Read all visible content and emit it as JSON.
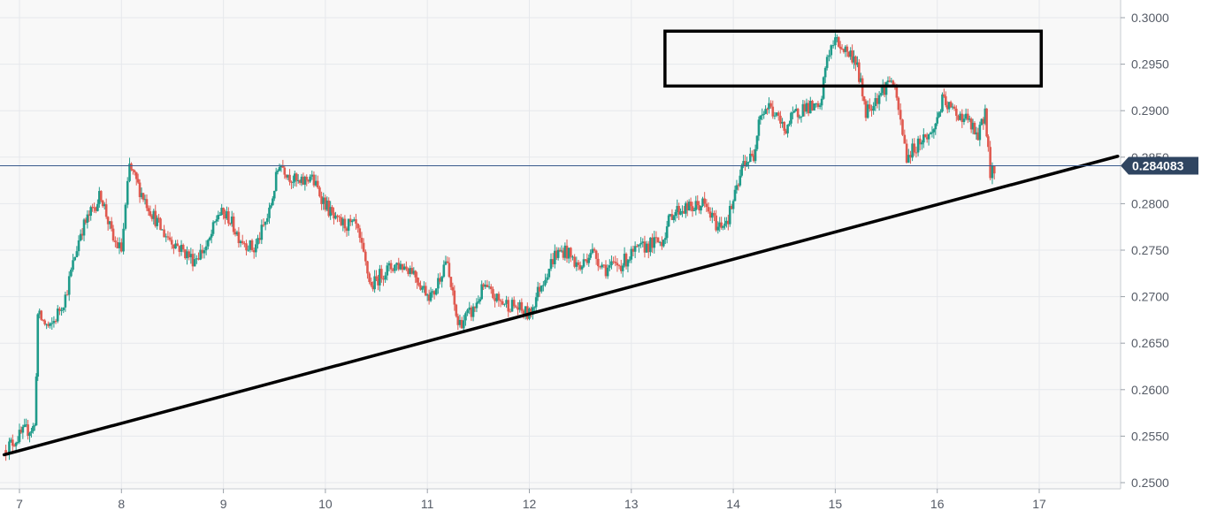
{
  "chart_data": {
    "type": "candlestick",
    "title": "",
    "xlabel": "",
    "ylabel": "",
    "x_ticks": [
      "7",
      "8",
      "9",
      "10",
      "11",
      "12",
      "13",
      "14",
      "15",
      "16",
      "17"
    ],
    "y_ticks": [
      "0.3000",
      "0.2950",
      "0.2900",
      "0.2850",
      "0.2800",
      "0.2750",
      "0.2700",
      "0.2650",
      "0.2600",
      "0.2550",
      "0.2500"
    ],
    "xlim": [
      6.85,
      17.8
    ],
    "ylim": [
      0.2497,
      0.3015
    ],
    "grid": true,
    "current_price": "0.284083",
    "current_price_value": 0.284083,
    "colors": {
      "up": "#1f9b8a",
      "down": "#e05a50",
      "price_line": "#3a5a8c",
      "badge_bg": "#2f4561",
      "grid": "#e6e8ec",
      "plot_bg": "#f8f8f8",
      "annotation": "#000000"
    },
    "series": [
      {
        "type": "candlestick",
        "points": [
          {
            "x": 6.85,
            "y": 0.2535
          },
          {
            "x": 6.95,
            "y": 0.2545
          },
          {
            "x": 7.05,
            "y": 0.2555
          },
          {
            "x": 7.15,
            "y": 0.256
          },
          {
            "x": 7.18,
            "y": 0.268
          },
          {
            "x": 7.3,
            "y": 0.2665
          },
          {
            "x": 7.45,
            "y": 0.27
          },
          {
            "x": 7.6,
            "y": 0.277
          },
          {
            "x": 7.7,
            "y": 0.279
          },
          {
            "x": 7.8,
            "y": 0.281
          },
          {
            "x": 7.92,
            "y": 0.276
          },
          {
            "x": 8.0,
            "y": 0.275
          },
          {
            "x": 8.08,
            "y": 0.284
          },
          {
            "x": 8.18,
            "y": 0.2815
          },
          {
            "x": 8.3,
            "y": 0.279
          },
          {
            "x": 8.4,
            "y": 0.277
          },
          {
            "x": 8.55,
            "y": 0.2755
          },
          {
            "x": 8.7,
            "y": 0.274
          },
          {
            "x": 8.85,
            "y": 0.2755
          },
          {
            "x": 8.95,
            "y": 0.279
          },
          {
            "x": 9.05,
            "y": 0.2785
          },
          {
            "x": 9.15,
            "y": 0.2765
          },
          {
            "x": 9.3,
            "y": 0.275
          },
          {
            "x": 9.45,
            "y": 0.279
          },
          {
            "x": 9.55,
            "y": 0.2845
          },
          {
            "x": 9.65,
            "y": 0.283
          },
          {
            "x": 9.75,
            "y": 0.282
          },
          {
            "x": 9.85,
            "y": 0.283
          },
          {
            "x": 10.0,
            "y": 0.28
          },
          {
            "x": 10.1,
            "y": 0.278
          },
          {
            "x": 10.3,
            "y": 0.2775
          },
          {
            "x": 10.45,
            "y": 0.271
          },
          {
            "x": 10.55,
            "y": 0.2725
          },
          {
            "x": 10.7,
            "y": 0.2735
          },
          {
            "x": 10.85,
            "y": 0.273
          },
          {
            "x": 10.95,
            "y": 0.271
          },
          {
            "x": 11.05,
            "y": 0.27
          },
          {
            "x": 11.18,
            "y": 0.274
          },
          {
            "x": 11.3,
            "y": 0.267
          },
          {
            "x": 11.45,
            "y": 0.2685
          },
          {
            "x": 11.55,
            "y": 0.271
          },
          {
            "x": 11.7,
            "y": 0.2695
          },
          {
            "x": 11.85,
            "y": 0.269
          },
          {
            "x": 12.0,
            "y": 0.268
          },
          {
            "x": 12.1,
            "y": 0.271
          },
          {
            "x": 12.25,
            "y": 0.2745
          },
          {
            "x": 12.35,
            "y": 0.275
          },
          {
            "x": 12.5,
            "y": 0.273
          },
          {
            "x": 12.6,
            "y": 0.275
          },
          {
            "x": 12.75,
            "y": 0.273
          },
          {
            "x": 12.9,
            "y": 0.2735
          },
          {
            "x": 13.0,
            "y": 0.2745
          },
          {
            "x": 13.15,
            "y": 0.2755
          },
          {
            "x": 13.3,
            "y": 0.276
          },
          {
            "x": 13.4,
            "y": 0.279
          },
          {
            "x": 13.5,
            "y": 0.2795
          },
          {
            "x": 13.6,
            "y": 0.2795
          },
          {
            "x": 13.7,
            "y": 0.28
          },
          {
            "x": 13.85,
            "y": 0.2775
          },
          {
            "x": 13.95,
            "y": 0.2785
          },
          {
            "x": 14.05,
            "y": 0.282
          },
          {
            "x": 14.1,
            "y": 0.2845
          },
          {
            "x": 14.2,
            "y": 0.285
          },
          {
            "x": 14.25,
            "y": 0.2895
          },
          {
            "x": 14.35,
            "y": 0.2905
          },
          {
            "x": 14.5,
            "y": 0.288
          },
          {
            "x": 14.6,
            "y": 0.2895
          },
          {
            "x": 14.7,
            "y": 0.2905
          },
          {
            "x": 14.85,
            "y": 0.29
          },
          {
            "x": 14.92,
            "y": 0.296
          },
          {
            "x": 15.0,
            "y": 0.2975
          },
          {
            "x": 15.1,
            "y": 0.2965
          },
          {
            "x": 15.2,
            "y": 0.2955
          },
          {
            "x": 15.3,
            "y": 0.29
          },
          {
            "x": 15.45,
            "y": 0.292
          },
          {
            "x": 15.55,
            "y": 0.2935
          },
          {
            "x": 15.62,
            "y": 0.29
          },
          {
            "x": 15.7,
            "y": 0.285
          },
          {
            "x": 15.85,
            "y": 0.287
          },
          {
            "x": 15.95,
            "y": 0.2875
          },
          {
            "x": 16.05,
            "y": 0.291
          },
          {
            "x": 16.15,
            "y": 0.29
          },
          {
            "x": 16.3,
            "y": 0.289
          },
          {
            "x": 16.4,
            "y": 0.287
          },
          {
            "x": 16.47,
            "y": 0.29
          },
          {
            "x": 16.5,
            "y": 0.286
          },
          {
            "x": 16.52,
            "y": 0.2825
          },
          {
            "x": 16.56,
            "y": 0.284
          }
        ]
      }
    ],
    "annotations": {
      "trendline": {
        "x1": 6.85,
        "y1": 0.253,
        "x2": 17.77,
        "y2": 0.2851
      },
      "resistance_box": {
        "x_start": 13.33,
        "x_end": 17.02,
        "y_low": 0.29265,
        "y_high": 0.29855
      }
    }
  }
}
